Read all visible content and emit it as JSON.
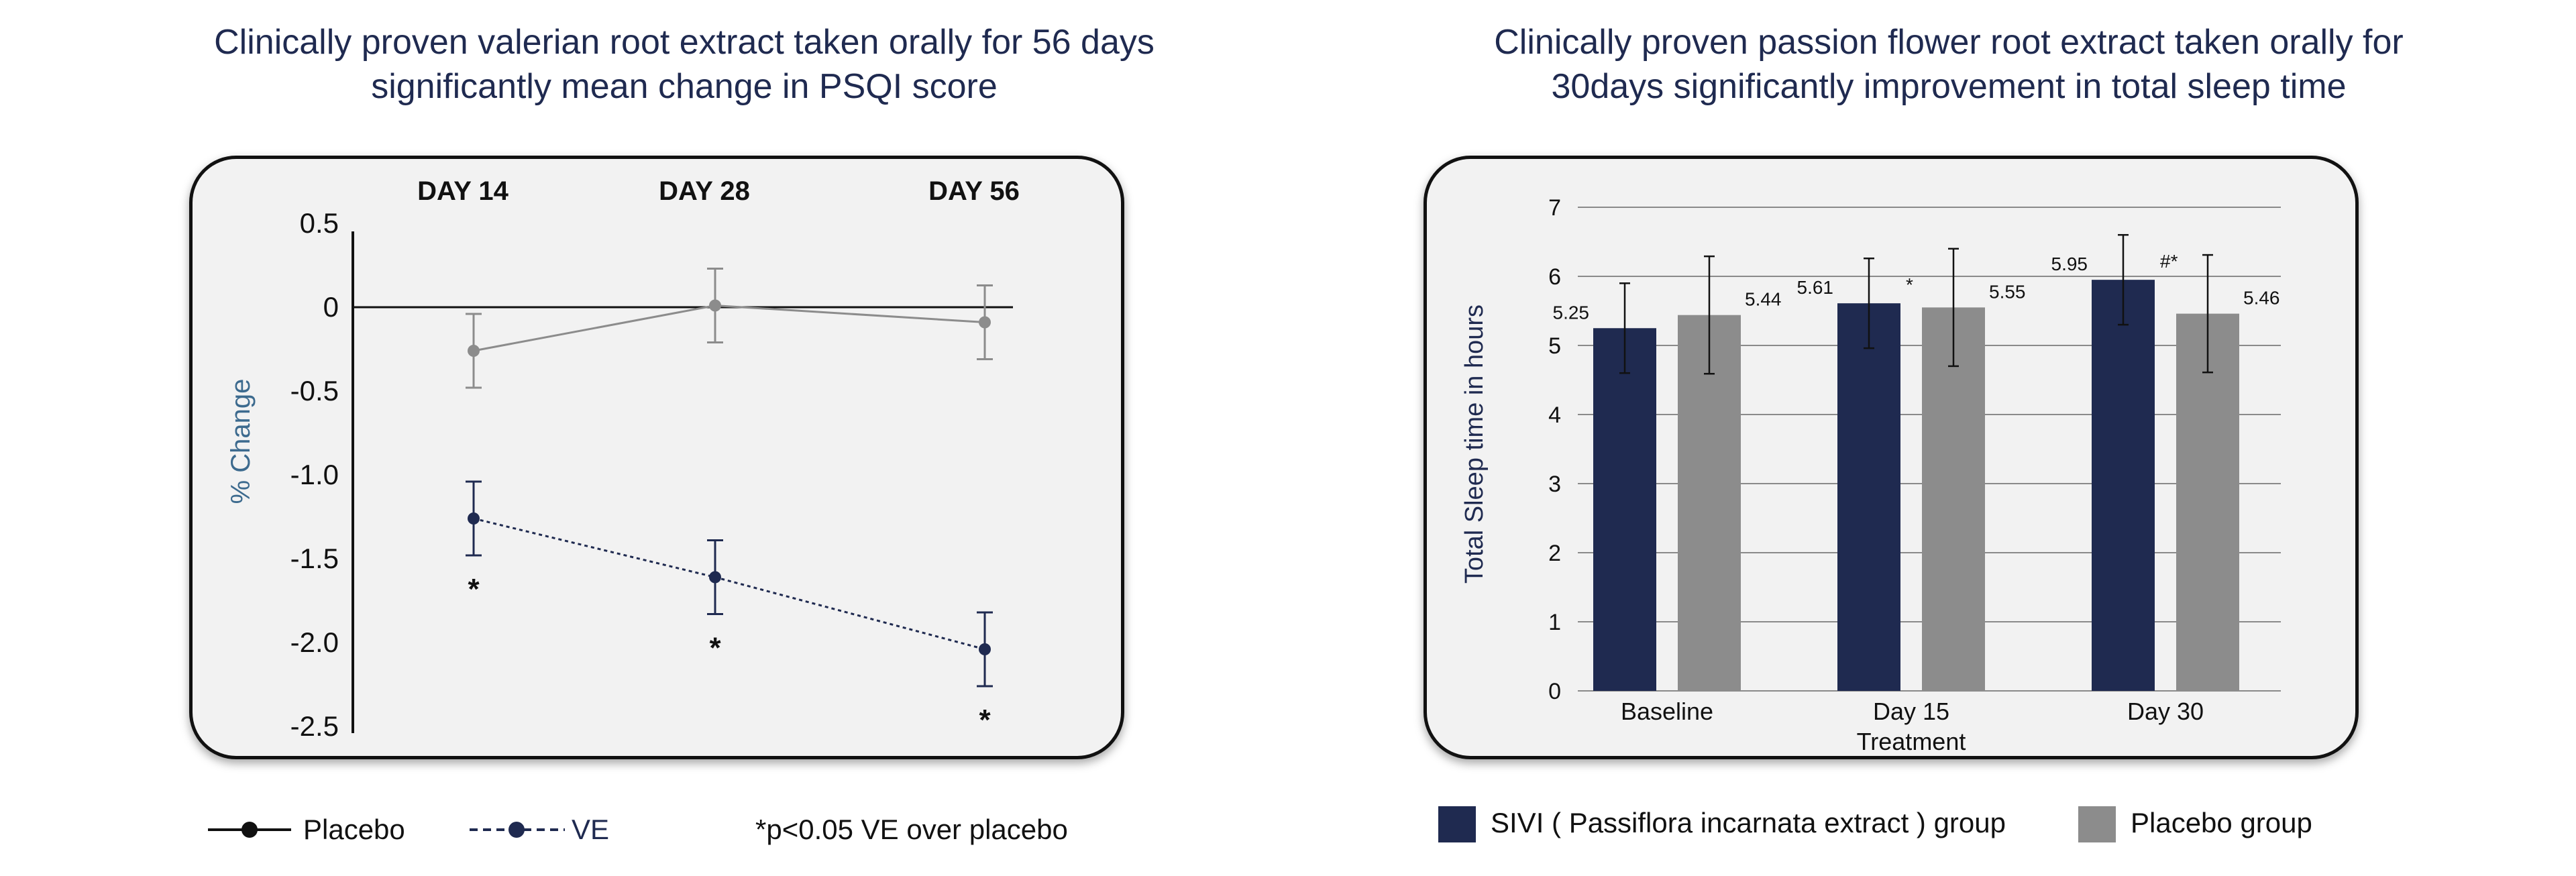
{
  "left_chart": {
    "title_line1": "Clinically proven valerian root extract taken orally for 56 days",
    "title_line2": "significantly mean change in PSQI score",
    "chart_data": {
      "type": "line",
      "categories": [
        "DAY 14",
        "DAY 28",
        "DAY 56"
      ],
      "ylabel": "% Change",
      "ylim": [
        -2.5,
        0.5
      ],
      "yticks": [
        "0.5",
        "0",
        "-0.5",
        "-1.0",
        "-1.5",
        "-2.0",
        "-2.5"
      ],
      "yticks_values": [
        0.5,
        0,
        -0.5,
        -1.0,
        -1.5,
        -2.0,
        -2.5
      ],
      "series": [
        {
          "name": "Placebo",
          "values": [
            -0.26,
            0.01,
            -0.09
          ],
          "err": [
            0.22,
            0.22,
            0.22
          ],
          "color": "#8c8c8c"
        },
        {
          "name": "VE",
          "values": [
            -1.26,
            -1.61,
            -2.04
          ],
          "err": [
            0.22,
            0.22,
            0.22
          ],
          "color": "#1f2a50"
        }
      ],
      "annotations": [
        "*",
        "*",
        "*"
      ]
    },
    "legend": {
      "placebo": "Placebo",
      "ve": "VE",
      "note": "*p<0.05 VE over placebo"
    }
  },
  "right_chart": {
    "title_line1": "Clinically proven passion flower root extract taken orally for",
    "title_line2": "30days significantly improvement in total sleep time",
    "chart_data": {
      "type": "bar",
      "categories": [
        "Baseline",
        "Day 15",
        "Day 30"
      ],
      "xlabel": "Treatment",
      "ylabel": "Total Sleep time in hours",
      "ylim": [
        0,
        7
      ],
      "yticks": [
        "0",
        "1",
        "2",
        "3",
        "4",
        "5",
        "6",
        "7"
      ],
      "yticks_values": [
        0,
        1,
        2,
        3,
        4,
        5,
        6,
        7
      ],
      "series": [
        {
          "name": "SIVI ( Passiflora incarnata extract ) group",
          "values": [
            5.25,
            5.61,
            5.95
          ],
          "labels": [
            "5.25",
            "5.61",
            "5.95"
          ],
          "err": [
            0.65,
            0.65,
            0.65
          ],
          "color": "#1f2a50"
        },
        {
          "name": "Placebo group",
          "values": [
            5.44,
            5.55,
            5.46
          ],
          "labels": [
            "5.44",
            "5.55",
            "5.46"
          ],
          "err": [
            0.85,
            0.85,
            0.85
          ],
          "color": "#8c8c8c"
        }
      ],
      "annotations": [
        "",
        "*",
        "#*"
      ]
    },
    "legend": {
      "sivi": "SIVI ( Passiflora incarnata extract ) group",
      "placebo": "Placebo group"
    }
  }
}
